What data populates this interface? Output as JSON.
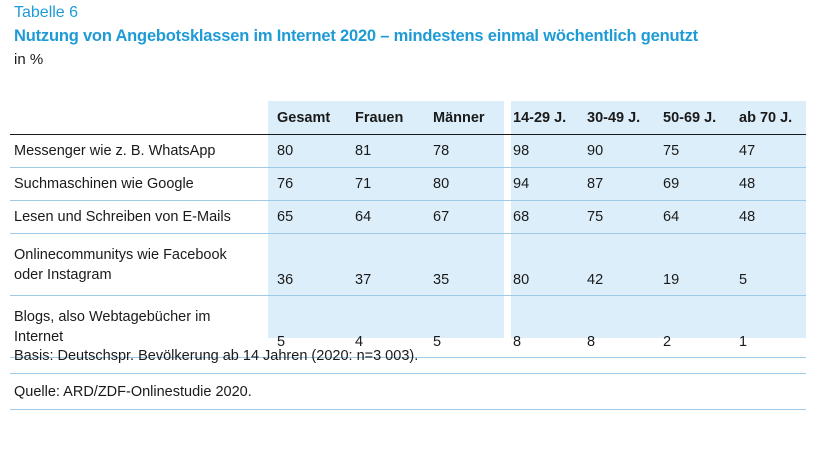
{
  "table_label": "Tabelle 6",
  "title": "Nutzung von Angebotsklassen im Internet 2020 – mindestens einmal wöchentlich genutzt",
  "unit": "in %",
  "columns": [
    "",
    "Gesamt",
    "Frauen",
    "Männer",
    "14-29 J.",
    "30-49 J.",
    "50-69 J.",
    "ab 70 J."
  ],
  "rows": [
    {
      "label_lines": [
        "Messenger wie z. B. WhatsApp"
      ],
      "values": [
        "80",
        "81",
        "78",
        "98",
        "90",
        "75",
        "47"
      ]
    },
    {
      "label_lines": [
        "Suchmaschinen wie Google"
      ],
      "values": [
        "76",
        "71",
        "80",
        "94",
        "87",
        "69",
        "48"
      ]
    },
    {
      "label_lines": [
        "Lesen und Schreiben von E-Mails"
      ],
      "values": [
        "65",
        "64",
        "67",
        "68",
        "75",
        "64",
        "48"
      ]
    },
    {
      "label_lines": [
        "Onlinecommunitys wie Facebook",
        "oder Instagram"
      ],
      "values": [
        "36",
        "37",
        "35",
        "80",
        "42",
        "19",
        "5"
      ]
    },
    {
      "label_lines": [
        "Blogs, also Webtagebücher im",
        "Internet"
      ],
      "values": [
        "5",
        "4",
        "5",
        "8",
        "8",
        "2",
        "1"
      ]
    }
  ],
  "basis": "Basis: Deutschspr. Bevölkerung ab 14 Jahren (2020: n=3 003).",
  "source": "Quelle: ARD/ZDF-Onlinestudie 2020.",
  "colors": {
    "accent": "#1e9bd7",
    "shade": "#dceef9",
    "rule": "#9fcbe8"
  }
}
